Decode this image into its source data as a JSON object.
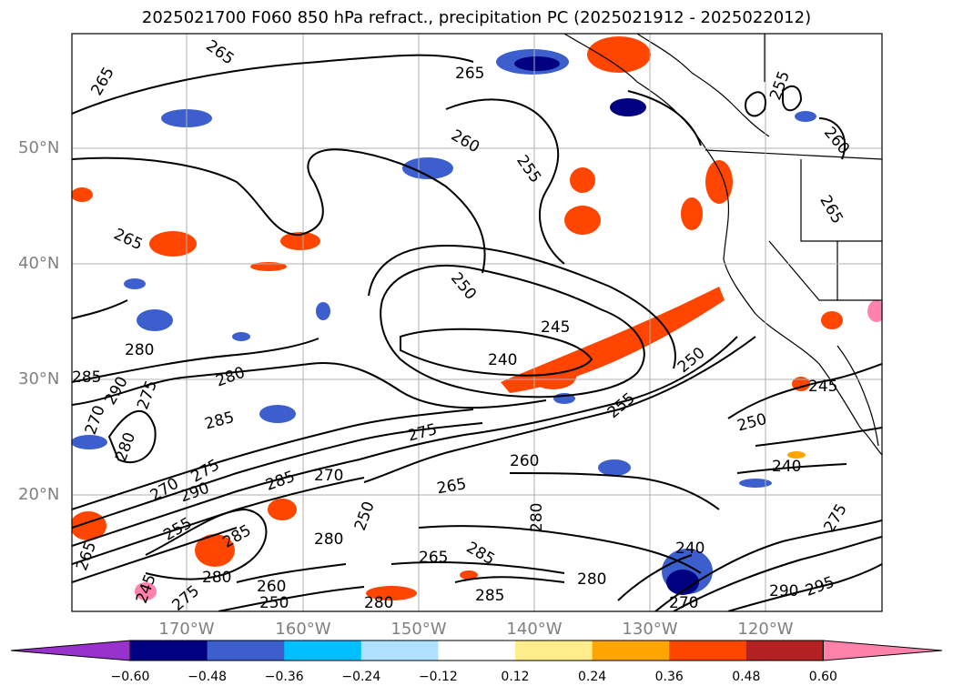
{
  "title": "2025021700 F060 850 hPa refract., precipitation PC (2025021912 - 2025022012)",
  "lat_labels": [
    "50°N",
    "40°N",
    "30°N",
    "20°N"
  ],
  "lon_labels": [
    "170°W",
    "160°W",
    "150°W",
    "140°W",
    "130°W",
    "120°W"
  ],
  "colorbar": {
    "colors": [
      "#9932cc",
      "#000080",
      "#3c5fcd",
      "#00bfff",
      "#b0e2ff",
      "#ffffff",
      "#ffec8b",
      "#ffa500",
      "#ff4500",
      "#b22222",
      "#ff82ab"
    ],
    "ticks": [
      "−0.60",
      "−0.48",
      "−0.36",
      "−0.24",
      "−0.12",
      "0.12",
      "0.24",
      "0.36",
      "0.48",
      "0.60"
    ]
  },
  "contour_labels": [
    "265",
    "265",
    "265",
    "260",
    "255",
    "255",
    "260",
    "265",
    "265",
    "250",
    "245",
    "240",
    "280",
    "285",
    "290",
    "275",
    "270",
    "280",
    "280",
    "285",
    "275",
    "265",
    "260",
    "255",
    "250",
    "250",
    "245",
    "240",
    "270",
    "275",
    "290",
    "285",
    "270",
    "280",
    "265",
    "255",
    "280",
    "260",
    "250",
    "280",
    "285",
    "285",
    "280",
    "240",
    "270",
    "275",
    "280",
    "265",
    "250",
    "245",
    "290",
    "295",
    "285",
    "275"
  ]
}
